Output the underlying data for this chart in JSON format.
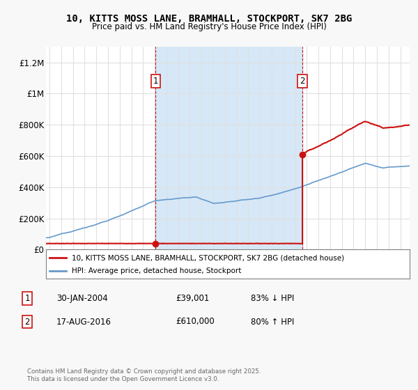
{
  "title": "10, KITTS MOSS LANE, BRAMHALL, STOCKPORT, SK7 2BG",
  "subtitle": "Price paid vs. HM Land Registry's House Price Index (HPI)",
  "ylim": [
    0,
    1300000
  ],
  "xlim_start": 1994.7,
  "xlim_end": 2025.8,
  "yticks": [
    0,
    200000,
    400000,
    600000,
    800000,
    1000000,
    1200000
  ],
  "ytick_labels": [
    "£0",
    "£200K",
    "£400K",
    "£600K",
    "£800K",
    "£1M",
    "£1.2M"
  ],
  "plot_bg_color": "#ffffff",
  "shade_color": "#d6e8f7",
  "grid_color": "#e0e0e0",
  "sale1_date": 2004.08,
  "sale1_price": 39001,
  "sale2_date": 2016.63,
  "sale2_price": 610000,
  "hpi_color": "#6699cc",
  "sale_color": "#cc1111",
  "legend_label_sale": "10, KITTS MOSS LANE, BRAMHALL, STOCKPORT, SK7 2BG (detached house)",
  "legend_label_hpi": "HPI: Average price, detached house, Stockport",
  "note1_num": "1",
  "note1_date": "30-JAN-2004",
  "note1_price": "£39,001",
  "note1_pct": "83% ↓ HPI",
  "note2_num": "2",
  "note2_date": "17-AUG-2016",
  "note2_price": "£610,000",
  "note2_pct": "80% ↑ HPI",
  "footer": "Contains HM Land Registry data © Crown copyright and database right 2025.\nThis data is licensed under the Open Government Licence v3.0.",
  "fig_bg_color": "#f8f8f8"
}
